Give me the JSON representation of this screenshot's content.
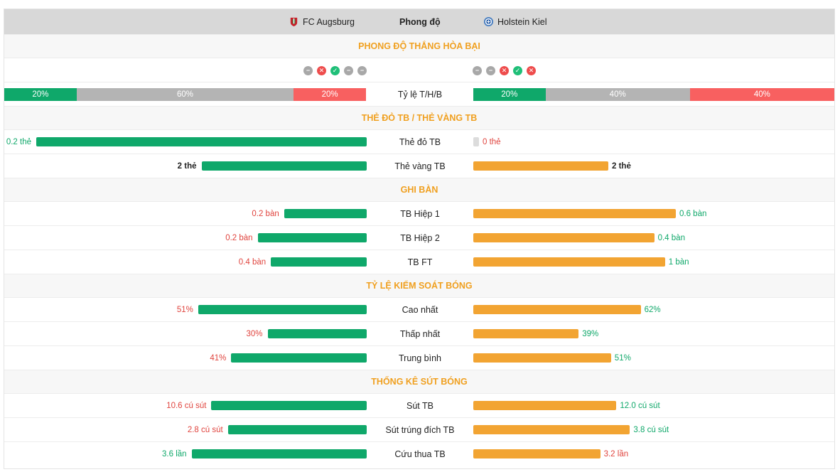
{
  "header": {
    "team_a": "FC Augsburg",
    "title": "Phong độ",
    "team_b": "Holstein Kiel"
  },
  "colors": {
    "win": "#0fa86a",
    "draw": "#b4b4b4",
    "loss": "#f86060",
    "bar_left": "#0fa86a",
    "bar_right": "#f2a432",
    "section_title": "#f0a020"
  },
  "form": {
    "title": "PHONG ĐỘ THẮNG HÒA BẠI",
    "team_a": [
      "draw",
      "loss",
      "win",
      "draw",
      "draw"
    ],
    "team_b": [
      "draw",
      "draw",
      "loss",
      "win",
      "loss"
    ],
    "ratio_label": "Tỷ lệ T/H/B",
    "ratio_a": [
      {
        "type": "win",
        "pct": 20,
        "label": "20%"
      },
      {
        "type": "draw",
        "pct": 60,
        "label": "60%"
      },
      {
        "type": "loss",
        "pct": 20,
        "label": "20%"
      }
    ],
    "ratio_b": [
      {
        "type": "win",
        "pct": 20,
        "label": "20%"
      },
      {
        "type": "draw",
        "pct": 40,
        "label": "40%"
      },
      {
        "type": "loss",
        "pct": 40,
        "label": "40%"
      }
    ]
  },
  "sections": [
    {
      "title": "THẺ ĐỎ TB / THẺ VÀNG TB",
      "rows": [
        {
          "label": "Thẻ đỏ TB",
          "a_text": "0.2 thẻ",
          "a_frac": 1.0,
          "a_color": "green",
          "b_text": "0 thẻ",
          "b_frac": 0.0,
          "b_color": "red"
        },
        {
          "label": "Thẻ vàng TB",
          "a_text": "2 thẻ",
          "a_frac": 0.5,
          "a_color": "black",
          "b_text": "2 thẻ",
          "b_frac": 0.5,
          "b_color": "black"
        }
      ]
    },
    {
      "title": "GHI BÀN",
      "rows": [
        {
          "label": "TB Hiệp 1",
          "a_text": "0.2 bàn",
          "a_frac": 0.25,
          "a_color": "red",
          "b_text": "0.6 bàn",
          "b_frac": 0.75,
          "b_color": "green"
        },
        {
          "label": "TB Hiệp 2",
          "a_text": "0.2 bàn",
          "a_frac": 0.33,
          "a_color": "red",
          "b_text": "0.4 bàn",
          "b_frac": 0.67,
          "b_color": "green"
        },
        {
          "label": "TB FT",
          "a_text": "0.4 bàn",
          "a_frac": 0.29,
          "a_color": "red",
          "b_text": "1 bàn",
          "b_frac": 0.71,
          "b_color": "green"
        }
      ]
    },
    {
      "title": "TỶ LỆ KIỂM SOÁT BÓNG",
      "rows": [
        {
          "label": "Cao nhất",
          "a_text": "51%",
          "a_frac": 0.51,
          "a_color": "red",
          "b_text": "62%",
          "b_frac": 0.62,
          "b_color": "green"
        },
        {
          "label": "Thấp nhất",
          "a_text": "30%",
          "a_frac": 0.3,
          "a_color": "red",
          "b_text": "39%",
          "b_frac": 0.39,
          "b_color": "green"
        },
        {
          "label": "Trung bình",
          "a_text": "41%",
          "a_frac": 0.41,
          "a_color": "red",
          "b_text": "51%",
          "b_frac": 0.51,
          "b_color": "green"
        }
      ]
    },
    {
      "title": "THỐNG KÊ SÚT BÓNG",
      "rows": [
        {
          "label": "Sút TB",
          "a_text": "10.6 cú sút",
          "a_frac": 0.47,
          "a_color": "red",
          "b_text": "12.0 cú sút",
          "b_frac": 0.53,
          "b_color": "green"
        },
        {
          "label": "Sút trúng đích TB",
          "a_text": "2.8 cú sút",
          "a_frac": 0.42,
          "a_color": "red",
          "b_text": "3.8 cú sút",
          "b_frac": 0.58,
          "b_color": "green"
        },
        {
          "label": "Cứu thua TB",
          "a_text": "3.6 lần",
          "a_frac": 0.53,
          "a_color": "green",
          "b_text": "3.2 lần",
          "b_frac": 0.47,
          "b_color": "red"
        }
      ]
    }
  ]
}
